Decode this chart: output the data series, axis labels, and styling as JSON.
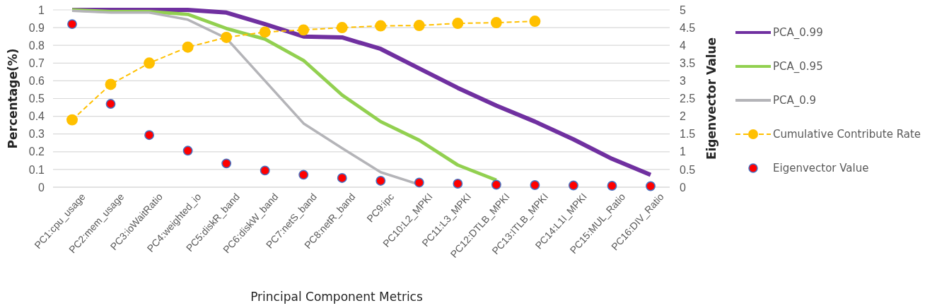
{
  "chart_data": {
    "type": "line",
    "xlabel": "Principal Component Metrics",
    "ylabel": "Percentage(%)",
    "y2label": "Eigenvector Value",
    "categories": [
      "PC1:cpu_usage",
      "PC2:mem_usage",
      "PC3:ioWaitRatio",
      "PC4:weighted_io",
      "PC5:diskR_band",
      "PC6:diskW_band",
      "PC7:netS_band",
      "PC8:netR_band",
      "PC9:ipc",
      "PC10:L2_MPKI",
      "PC11:L3_MPKI",
      "PC12:DTLB_MPKI",
      "PC13:ITLB_MPKI",
      "PC14:L1I_MPKI",
      "PC15:MUL_Ratio",
      "PC16:DIV_Ratio"
    ],
    "series": [
      {
        "name": "PCA_0.99",
        "color": "#7030a0",
        "values": [
          1,
          1,
          1,
          1,
          0.985,
          0.92,
          0.85,
          0.845,
          0.78,
          0.67,
          0.56,
          0.46,
          0.37,
          0.27,
          0.16,
          0.07
        ]
      },
      {
        "name": "PCA_0.95",
        "color": "#92d050",
        "values": [
          1,
          0.99,
          0.99,
          0.975,
          0.895,
          0.835,
          0.715,
          0.52,
          0.37,
          0.265,
          0.125,
          0.04,
          null,
          null,
          null,
          null
        ]
      },
      {
        "name": "PCA_0.9",
        "color": "#b4b4b8",
        "values": [
          0.995,
          0.985,
          0.985,
          0.945,
          0.84,
          0.6,
          0.36,
          0.22,
          0.085,
          0.015,
          null,
          null,
          null,
          null,
          null,
          null
        ]
      },
      {
        "name": "Cumulative Contribute Rate",
        "color": "#ffc000",
        "line_style": "dashed",
        "marker": "circle",
        "values": [
          0.38,
          0.58,
          0.7,
          0.79,
          0.845,
          0.875,
          0.887,
          0.9,
          0.91,
          0.912,
          0.924,
          0.928,
          0.936,
          null,
          null,
          null
        ]
      },
      {
        "name": "Eigenvector Value",
        "type": "scatter",
        "axis": "y2",
        "color": "#ff0000",
        "marker": "circle",
        "values": [
          4.6,
          2.35,
          1.47,
          1.03,
          0.67,
          0.47,
          0.35,
          0.26,
          0.18,
          0.13,
          0.1,
          0.07,
          0.06,
          0.05,
          0.04,
          0.03
        ]
      }
    ],
    "ylim": [
      0,
      1
    ],
    "yticks": [
      0,
      0.1,
      0.2,
      0.3,
      0.4,
      0.5,
      0.6,
      0.7,
      0.8,
      0.9,
      1
    ],
    "y2lim": [
      0,
      5
    ],
    "y2ticks": [
      0,
      0.5,
      1,
      1.5,
      2,
      2.5,
      3,
      3.5,
      4,
      4.5,
      5
    ],
    "grid": "y",
    "legend": "right"
  }
}
